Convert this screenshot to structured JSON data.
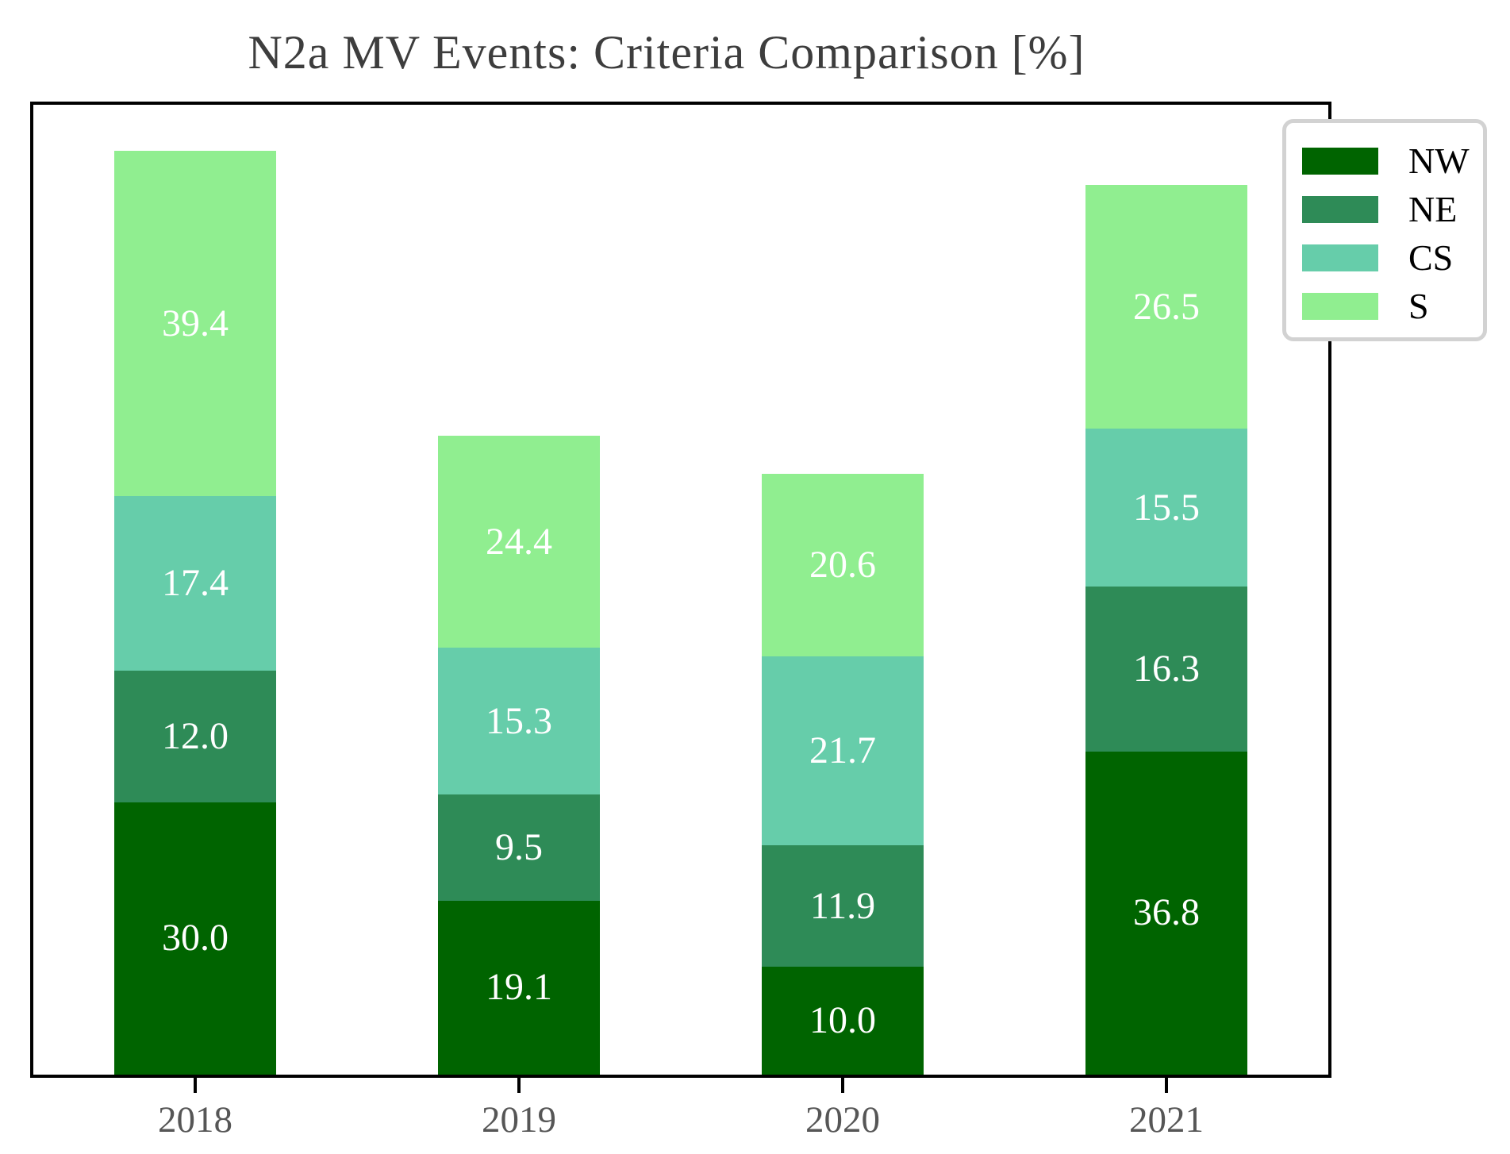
{
  "title": "N2a MV Events: Criteria Comparison [%]",
  "chart_data": {
    "type": "bar",
    "stacked": true,
    "title": "N2a MV Events: Criteria Comparison [%]",
    "xlabel": "",
    "ylabel": "",
    "categories": [
      "2018",
      "2019",
      "2020",
      "2021"
    ],
    "series": [
      {
        "name": "NW",
        "color": "#006400",
        "values": [
          30.0,
          19.1,
          10.0,
          36.8
        ]
      },
      {
        "name": "NE",
        "color": "#2E8B57",
        "values": [
          12.0,
          9.5,
          11.9,
          16.3
        ]
      },
      {
        "name": "CS",
        "color": "#66CDAA",
        "values": [
          17.4,
          15.3,
          21.7,
          15.5
        ]
      },
      {
        "name": "S",
        "color": "#90EE90",
        "values": [
          39.4,
          24.4,
          20.6,
          26.5
        ]
      }
    ],
    "totals": [
      98.8,
      68.3,
      64.2,
      95.1
    ],
    "ylim": [
      0,
      103.7
    ],
    "grid": false,
    "legend_position": "upper right",
    "bar_value_label_color": "#ffffff",
    "bar_width_fraction": 0.5,
    "frame_color": "#000000",
    "tick_label_color": "#565656",
    "title_color": "#3d3d3d"
  }
}
